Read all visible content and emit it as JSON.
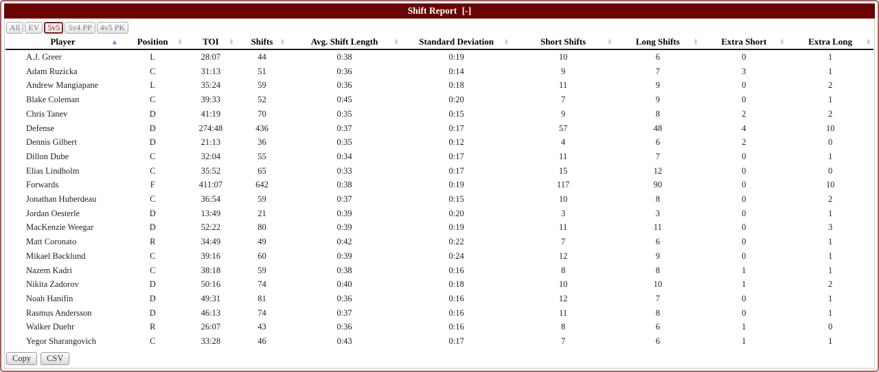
{
  "widget": {
    "title": "Shift Report",
    "collapse_label": "[-]"
  },
  "filters": [
    {
      "label": "All",
      "active": false
    },
    {
      "label": "EV",
      "active": false
    },
    {
      "label": "5v5",
      "active": true
    },
    {
      "label": "5v4 PP",
      "active": false
    },
    {
      "label": "4v5 PK",
      "active": false
    }
  ],
  "table": {
    "columns": [
      "Player",
      "Position",
      "TOI",
      "Shifts",
      "Avg. Shift Length",
      "Standard Deviation",
      "Short Shifts",
      "Long Shifts",
      "Extra Short",
      "Extra Long"
    ],
    "sort": {
      "column": "Player",
      "direction": "ascending"
    },
    "rows": [
      [
        "A.J. Greer",
        "L",
        "28:07",
        "44",
        "0:38",
        "0:19",
        "10",
        "6",
        "0",
        "1"
      ],
      [
        "Adam Ruzicka",
        "C",
        "31:13",
        "51",
        "0:36",
        "0:14",
        "9",
        "7",
        "3",
        "1"
      ],
      [
        "Andrew Mangiapane",
        "L",
        "35:24",
        "59",
        "0:36",
        "0:18",
        "11",
        "9",
        "0",
        "2"
      ],
      [
        "Blake Coleman",
        "C",
        "39:33",
        "52",
        "0:45",
        "0:20",
        "7",
        "9",
        "0",
        "1"
      ],
      [
        "Chris Tanev",
        "D",
        "41:19",
        "70",
        "0:35",
        "0:15",
        "9",
        "8",
        "2",
        "2"
      ],
      [
        "Defense",
        "D",
        "274:48",
        "436",
        "0:37",
        "0:17",
        "57",
        "48",
        "4",
        "10"
      ],
      [
        "Dennis Gilbert",
        "D",
        "21:13",
        "36",
        "0:35",
        "0:12",
        "4",
        "6",
        "2",
        "0"
      ],
      [
        "Dillon Dube",
        "C",
        "32:04",
        "55",
        "0:34",
        "0:17",
        "11",
        "7",
        "0",
        "1"
      ],
      [
        "Elias Lindholm",
        "C",
        "35:52",
        "65",
        "0:33",
        "0:17",
        "15",
        "12",
        "0",
        "0"
      ],
      [
        "Forwards",
        "F",
        "411:07",
        "642",
        "0:38",
        "0:19",
        "117",
        "90",
        "0",
        "10"
      ],
      [
        "Jonathan Huberdeau",
        "C",
        "36:54",
        "59",
        "0:37",
        "0:15",
        "10",
        "8",
        "0",
        "2"
      ],
      [
        "Jordan Oesterle",
        "D",
        "13:49",
        "21",
        "0:39",
        "0:20",
        "3",
        "3",
        "0",
        "1"
      ],
      [
        "MacKenzie Weegar",
        "D",
        "52:22",
        "80",
        "0:39",
        "0:19",
        "11",
        "11",
        "0",
        "3"
      ],
      [
        "Matt Coronato",
        "R",
        "34:49",
        "49",
        "0:42",
        "0:22",
        "7",
        "6",
        "0",
        "1"
      ],
      [
        "Mikael Backlund",
        "C",
        "39:16",
        "60",
        "0:39",
        "0:24",
        "12",
        "9",
        "0",
        "1"
      ],
      [
        "Nazem Kadri",
        "C",
        "38:18",
        "59",
        "0:38",
        "0:16",
        "8",
        "8",
        "1",
        "1"
      ],
      [
        "Nikita Zadorov",
        "D",
        "50:16",
        "74",
        "0:40",
        "0:18",
        "10",
        "10",
        "1",
        "2"
      ],
      [
        "Noah Hanifin",
        "D",
        "49:31",
        "81",
        "0:36",
        "0:16",
        "12",
        "7",
        "0",
        "1"
      ],
      [
        "Rasmus Andersson",
        "D",
        "46:13",
        "74",
        "0:37",
        "0:16",
        "11",
        "8",
        "0",
        "1"
      ],
      [
        "Walker Duehr",
        "R",
        "26:07",
        "43",
        "0:36",
        "0:16",
        "8",
        "6",
        "1",
        "0"
      ],
      [
        "Yegor Sharangovich",
        "C",
        "33:28",
        "46",
        "0:43",
        "0:17",
        "7",
        "6",
        "1",
        "1"
      ]
    ]
  },
  "export_buttons": [
    {
      "label": "Copy"
    },
    {
      "label": "CSV"
    }
  ],
  "icons": {
    "sort_ascending": "▲",
    "sort_up": "▲",
    "sort_down": "▼"
  },
  "colors": {
    "titlebar_bg": "#6a0404",
    "titlebar_text": "#ffffff",
    "active_filter": "#8b1a1a",
    "sorted_arrow": "#7d7dd4",
    "neutral_arrow": "#c9c9c9",
    "outer_border": "#b05c5c"
  }
}
